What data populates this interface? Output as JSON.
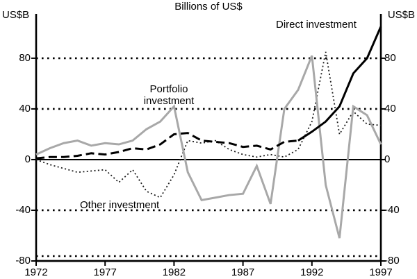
{
  "title": "Billions of US$",
  "left_axis_unit": "US$B",
  "right_axis_unit": "US$B",
  "annotations": {
    "direct": "Direct investment",
    "portfolio_line1": "Portfolio",
    "portfolio_line2": "investment",
    "other": "Other investment"
  },
  "chart_data": {
    "type": "line",
    "title": "Billions of US$",
    "xlabel": "",
    "ylabel": "US$B",
    "x": [
      1972,
      1973,
      1974,
      1975,
      1976,
      1977,
      1978,
      1979,
      1980,
      1981,
      1982,
      1983,
      1984,
      1985,
      1986,
      1987,
      1988,
      1989,
      1990,
      1991,
      1992,
      1993,
      1994,
      1995,
      1996,
      1997
    ],
    "x_tick_labels": [
      1972,
      1977,
      1982,
      1987,
      1992,
      1997
    ],
    "y_ticks": [
      80,
      40,
      0,
      -40,
      -80
    ],
    "grid_values": [
      80,
      40,
      -40
    ],
    "ylim": [
      -80,
      115
    ],
    "grid": true,
    "legend_position": "inline-annotations",
    "series": [
      {
        "name": "Other investment",
        "color": "#1a1a1a",
        "style": "dotted",
        "values": [
          0,
          -4,
          -7,
          -10,
          -9,
          -8,
          -18,
          -8,
          -25,
          -30,
          -12,
          15,
          13,
          15,
          8,
          4,
          2,
          4,
          2,
          8,
          30,
          85,
          20,
          38,
          28,
          27
        ]
      },
      {
        "name": "Portfolio investment",
        "color": "#a8a8a8",
        "style": "solid",
        "values": [
          4,
          9,
          13,
          15,
          11,
          13,
          12,
          15,
          24,
          30,
          42,
          -10,
          -32,
          -30,
          -28,
          -27,
          -5,
          -35,
          40,
          55,
          82,
          -20,
          -62,
          42,
          35,
          12
        ]
      },
      {
        "name": "Direct investment",
        "color": "#000000",
        "style": "dash-then-solid",
        "solid_from": 19,
        "values": [
          1,
          2,
          2,
          3,
          5,
          4,
          6,
          9,
          8,
          12,
          20,
          21,
          15,
          14,
          13,
          10,
          11,
          8,
          14,
          15,
          22,
          30,
          42,
          68,
          80,
          105
        ]
      }
    ]
  }
}
